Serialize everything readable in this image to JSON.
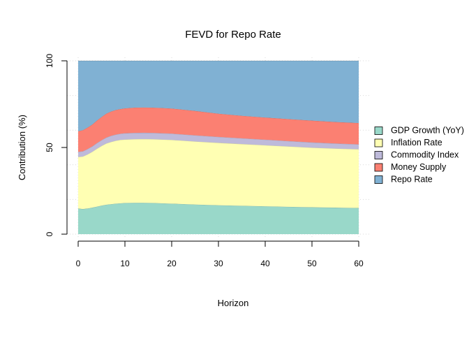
{
  "chart_data": {
    "type": "area",
    "stacked": true,
    "title": "FEVD for Repo Rate",
    "xlabel": "Horizon",
    "ylabel": "Contribution (%)",
    "xlim": [
      0,
      60
    ],
    "ylim": [
      0,
      100
    ],
    "xticks": [
      0,
      10,
      20,
      30,
      40,
      50,
      60
    ],
    "yticks": [
      0,
      50,
      100
    ],
    "grid": true,
    "legend_position": "right",
    "x": [
      0,
      1,
      2,
      3,
      4,
      5,
      6,
      7,
      8,
      9,
      10,
      12,
      14,
      16,
      18,
      20,
      25,
      30,
      35,
      40,
      45,
      50,
      55,
      60
    ],
    "series": [
      {
        "name": "GDP Growth (YoY)",
        "color": "#99d8c9",
        "values": [
          14.8,
          14.5,
          14.8,
          15.3,
          15.9,
          16.5,
          17.0,
          17.3,
          17.6,
          17.8,
          18.0,
          18.1,
          18.1,
          18.0,
          17.8,
          17.6,
          17.1,
          16.7,
          16.4,
          16.1,
          15.8,
          15.5,
          15.3,
          15.1
        ]
      },
      {
        "name": "Inflation Rate",
        "color": "#ffffb3",
        "values": [
          29.7,
          30.3,
          31.2,
          32.2,
          33.4,
          34.4,
          35.3,
          35.9,
          36.3,
          36.6,
          36.6,
          36.7,
          36.8,
          36.8,
          36.8,
          36.8,
          36.4,
          36.0,
          35.6,
          35.2,
          34.8,
          34.4,
          34.1,
          33.9
        ]
      },
      {
        "name": "Commodity Index",
        "color": "#bebada",
        "values": [
          3.0,
          3.0,
          3.1,
          3.1,
          3.2,
          3.3,
          3.4,
          3.5,
          3.5,
          3.5,
          3.6,
          3.6,
          3.6,
          3.6,
          3.6,
          3.6,
          3.5,
          3.4,
          3.3,
          3.2,
          3.1,
          3.0,
          2.9,
          2.8
        ]
      },
      {
        "name": "Money Supply",
        "color": "#fb8072",
        "values": [
          11.9,
          12.2,
          12.4,
          12.6,
          13.0,
          13.4,
          13.8,
          14.0,
          14.2,
          14.3,
          14.4,
          14.6,
          14.6,
          14.6,
          14.6,
          14.5,
          14.1,
          13.4,
          13.0,
          12.8,
          12.7,
          12.6,
          12.4,
          12.3
        ]
      },
      {
        "name": "Repo Rate",
        "color": "#80b1d3",
        "values": [
          40.6,
          40.0,
          38.5,
          36.8,
          34.5,
          32.4,
          30.5,
          29.3,
          28.4,
          27.8,
          27.4,
          27.0,
          26.9,
          27.0,
          27.2,
          27.5,
          28.9,
          30.5,
          31.7,
          32.7,
          33.6,
          34.5,
          35.3,
          35.9
        ]
      }
    ]
  }
}
